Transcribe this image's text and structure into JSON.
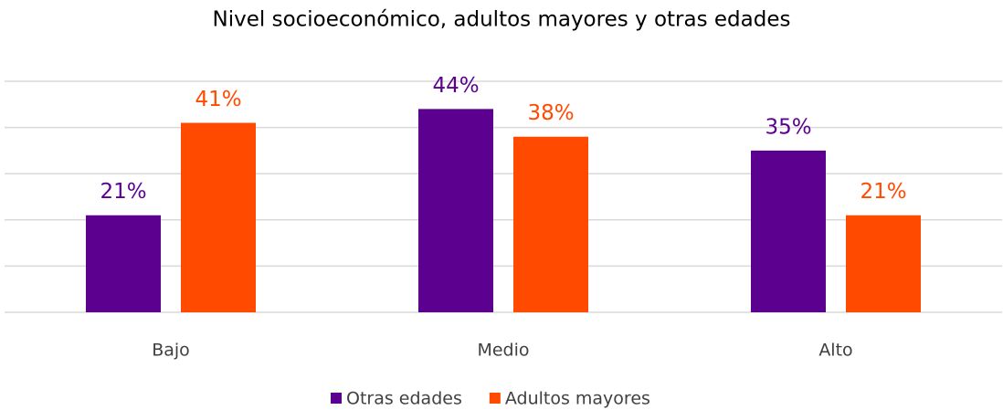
{
  "chart_data": {
    "type": "bar",
    "title": "Nivel socioeconómico, adultos mayores y otras edades",
    "categories": [
      "Bajo",
      "Medio",
      "Alto"
    ],
    "series": [
      {
        "name": "Otras edades",
        "color": "#5c0090",
        "values": [
          21,
          44,
          35
        ],
        "value_labels": [
          "21%",
          "44%",
          "35%"
        ]
      },
      {
        "name": "Adultos mayores",
        "color": "#ff4a00",
        "values": [
          41,
          38,
          21
        ],
        "value_labels": [
          "41%",
          "38%",
          "21%"
        ]
      }
    ],
    "ylim": [
      0,
      50
    ],
    "yticks": [
      0,
      10,
      20,
      30,
      40,
      50
    ],
    "grid": true,
    "legend": "bottom"
  }
}
